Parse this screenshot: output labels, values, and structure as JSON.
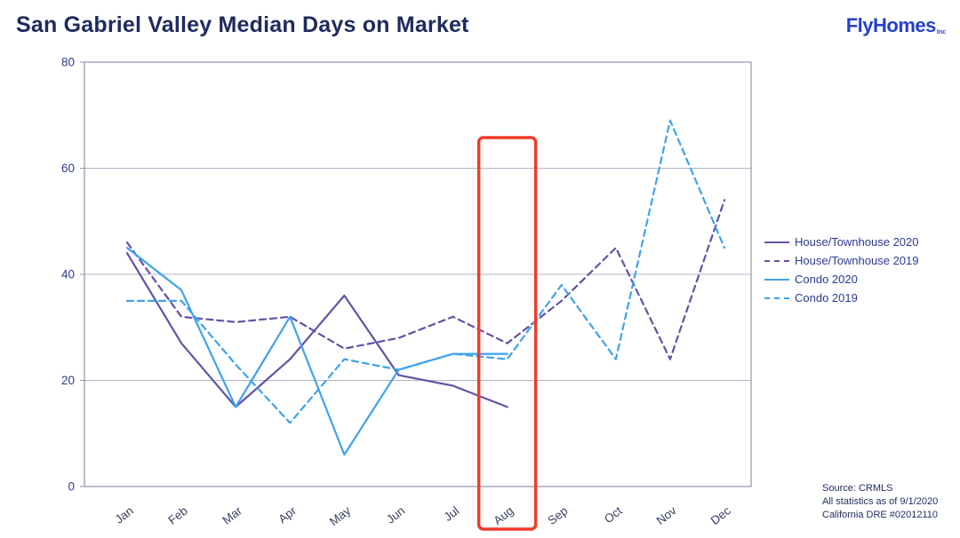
{
  "page": {
    "title": "San Gabriel Valley Median Days on Market",
    "logo": {
      "text": "FlyHomes",
      "suffix": "Inc"
    },
    "source_lines": [
      "Source: CRMLS",
      "All statistics as of 9/1/2020",
      "California DRE #02012110"
    ]
  },
  "chart_data": {
    "type": "line",
    "title": "San Gabriel Valley Median Days on Market",
    "categories": [
      "Jan",
      "Feb",
      "Mar",
      "Apr",
      "May",
      "Jun",
      "Jul",
      "Aug",
      "Sep",
      "Oct",
      "Nov",
      "Dec"
    ],
    "series": [
      {
        "name": "House/Townhouse 2020",
        "color": "#6153a4",
        "dash": "solid",
        "values": [
          44,
          27,
          15,
          24,
          36,
          21,
          19,
          15,
          null,
          null,
          null,
          null
        ]
      },
      {
        "name": "House/Townhouse 2019",
        "color": "#6153a4",
        "dash": "dashed",
        "values": [
          46,
          32,
          31,
          32,
          26,
          28,
          32,
          27,
          35,
          45,
          24,
          54
        ]
      },
      {
        "name": "Condo 2020",
        "color": "#3fa2ec",
        "dash": "solid",
        "values": [
          45,
          37,
          15,
          32,
          6,
          22,
          25,
          25,
          null,
          null,
          null,
          null
        ]
      },
      {
        "name": "Condo 2019",
        "color": "#3fa2ec",
        "dash": "dashed",
        "values": [
          35,
          35,
          23,
          12,
          24,
          22,
          25,
          24,
          38,
          24,
          69,
          45
        ]
      }
    ],
    "xlabel": "",
    "ylabel": "",
    "ylim": [
      0,
      80
    ],
    "yticks": [
      0,
      20,
      40,
      60,
      80
    ],
    "grid": true,
    "legend_position": "right",
    "highlight": {
      "category": "Aug",
      "color": "#f03b2b"
    },
    "colors": {
      "grid_line": "#aeb4c8",
      "plot_border": "#8f96a8",
      "y_tick_label": "#2d3a85",
      "x_tick_label": "#3a3f63"
    }
  }
}
